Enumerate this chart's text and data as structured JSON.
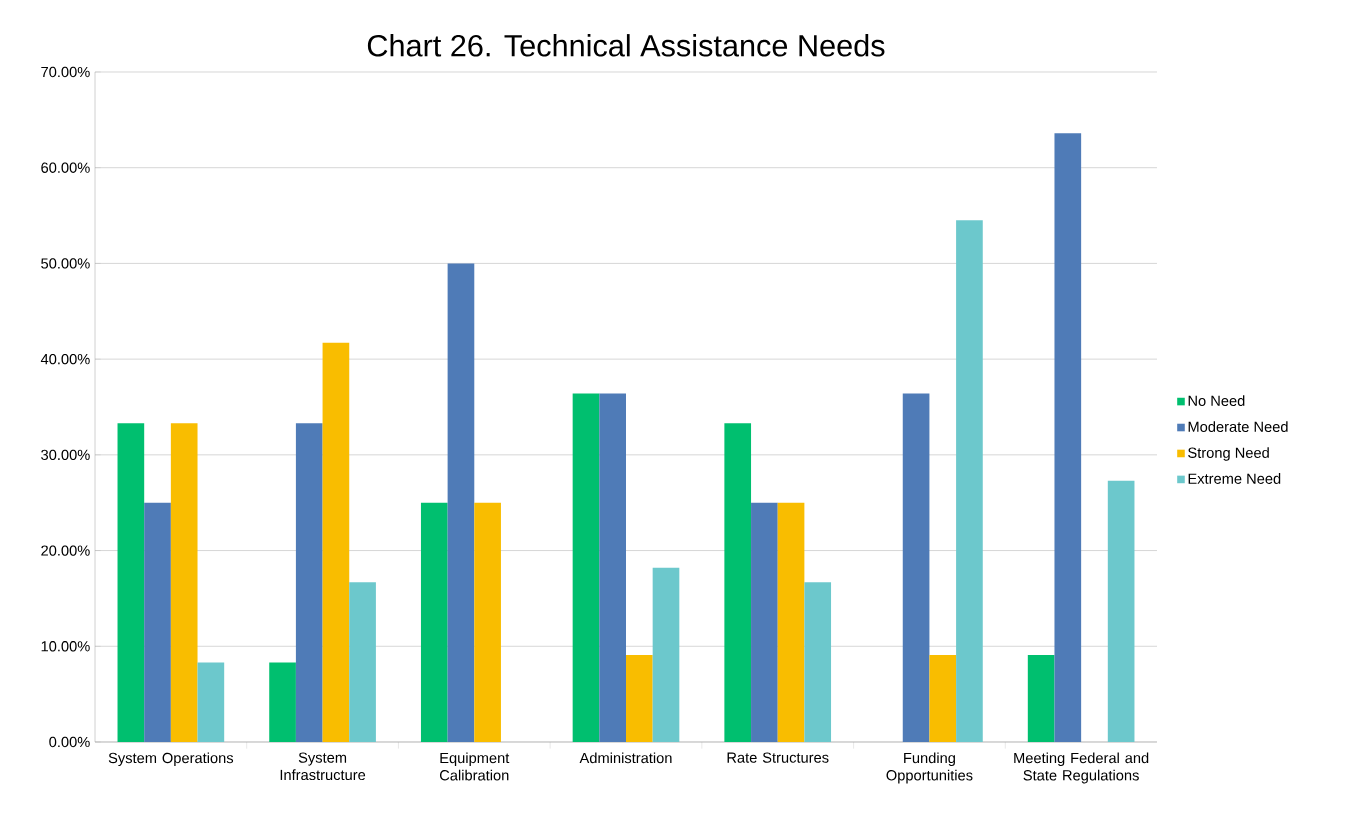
{
  "chart_data": {
    "type": "bar",
    "title": "Chart 26. Technical Assistance Needs",
    "categories": [
      "System Operations",
      "System Infrastructure",
      "Equipment Calibration",
      "Administration",
      "Rate Structures",
      "Funding Opportunities",
      "Meeting Federal and State Regulations"
    ],
    "series": [
      {
        "name": "No Need",
        "color": "#00bf6f",
        "values": [
          33.3,
          8.3,
          25,
          36.4,
          33.3,
          0,
          9.1
        ]
      },
      {
        "name": "Moderate Need",
        "color": "#4f7bb7",
        "values": [
          25,
          33.3,
          50,
          36.4,
          25,
          36.4,
          63.6
        ]
      },
      {
        "name": "Strong Need",
        "color": "#f9bd00",
        "values": [
          33.3,
          41.7,
          25,
          9.1,
          25,
          9.1,
          0
        ]
      },
      {
        "name": "Extreme Need",
        "color": "#6cc8cc",
        "values": [
          8.3,
          16.7,
          0,
          18.2,
          16.7,
          54.5,
          27.3
        ]
      }
    ],
    "ylim": [
      0,
      70
    ],
    "yticks": [
      {
        "value": 0,
        "label": "0.00%"
      },
      {
        "value": 10,
        "label": "10.00%"
      },
      {
        "value": 20,
        "label": "20.00%"
      },
      {
        "value": 30,
        "label": "30.00%"
      },
      {
        "value": 40,
        "label": "40.00%"
      },
      {
        "value": 50,
        "label": "50.00%"
      },
      {
        "value": 60,
        "label": "60.00%"
      },
      {
        "value": 70,
        "label": "70.00%"
      }
    ],
    "grid": "y",
    "legend": "right"
  }
}
